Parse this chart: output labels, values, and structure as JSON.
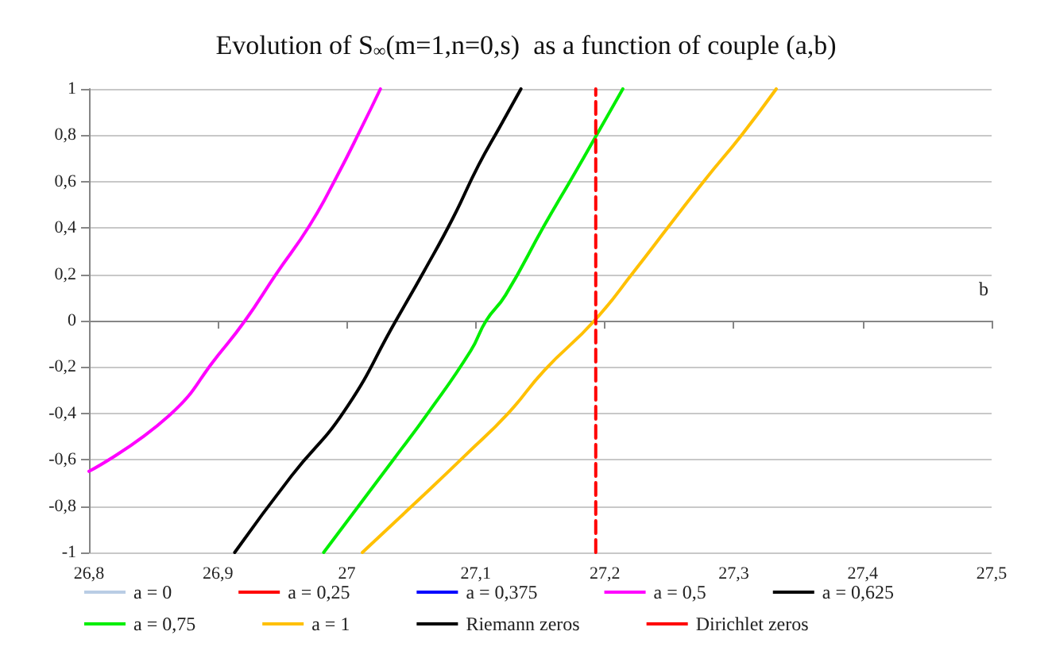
{
  "chart_data": {
    "type": "line",
    "title": "Evolution of S$_{∞}$(m=1,n=0,s)  as a function of couple (a,b)",
    "xlabel": "b",
    "xlim": [
      26.8,
      27.5
    ],
    "xticks": [
      {
        "value": 26.8,
        "label": "26,8"
      },
      {
        "value": 26.9,
        "label": "26,9"
      },
      27,
      {
        "value": 27.1,
        "label": "27,1"
      },
      {
        "value": 27.2,
        "label": "27,2"
      },
      {
        "value": 27.3,
        "label": "27,3"
      },
      {
        "value": 27.4,
        "label": "27,4"
      },
      {
        "value": 27.5,
        "label": "27,5"
      }
    ],
    "ylim": [
      -1,
      1
    ],
    "yticks": [
      -1,
      {
        "value": -0.8,
        "label": "-0,8"
      },
      {
        "value": -0.6,
        "label": "-0,6"
      },
      {
        "value": -0.4,
        "label": "-0,4"
      },
      {
        "value": -0.2,
        "label": "-0,2"
      },
      0,
      {
        "value": 0.2,
        "label": "0,2"
      },
      {
        "value": 0.4,
        "label": "0,4"
      },
      {
        "value": 0.6,
        "label": "0,6"
      },
      {
        "value": 0.8,
        "label": "0,8"
      },
      1
    ],
    "grid": "y",
    "legend": "bottom",
    "marker": "none",
    "series": [
      {
        "name": "a = 0",
        "color": "#b9cde5"
      },
      {
        "name": "a = 0,25",
        "color": "#ff0000"
      },
      {
        "name": "a = 0,375",
        "color": "#0000ff"
      },
      {
        "name": "a = 0,5",
        "color": "#ff00ff",
        "x": [
          26.8,
          26.862,
          26.9,
          26.921,
          26.945,
          26.971,
          26.992,
          27.012,
          27.026
        ],
        "values": [
          -0.65,
          -0.41,
          -0.15,
          0,
          0.2,
          0.41,
          0.62,
          0.84,
          1
        ]
      },
      {
        "name": "a = 0,625",
        "color": "#000000",
        "x": [
          26.913,
          26.957,
          26.998,
          27.038,
          27.06,
          27.082,
          27.102,
          27.119,
          27.135
        ],
        "values": [
          -1,
          -0.67,
          -0.39,
          0,
          0.215,
          0.44,
          0.67,
          0.84,
          1
        ]
      },
      {
        "name": "a = 0,75",
        "color": "#00ee00",
        "x": [
          26.982,
          27.036,
          27.064,
          27.096,
          27.108,
          27.123,
          27.153,
          27.175,
          27.192,
          27.214
        ],
        "values": [
          -1,
          -0.6,
          -0.39,
          -0.13,
          0,
          0.11,
          0.41,
          0.62,
          0.785,
          1
        ]
      },
      {
        "name": "a = 1",
        "color": "#ffc000",
        "x": [
          27.012,
          27.06,
          27.092,
          27.125,
          27.153,
          27.192,
          27.223,
          27.25,
          27.278,
          27.306,
          27.333
        ],
        "values": [
          -1,
          -0.75,
          -0.58,
          -0.4,
          -0.215,
          0,
          0.215,
          0.41,
          0.61,
          0.8,
          1
        ]
      },
      {
        "name": "Riemann zeros",
        "color": "#000000",
        "line_style": "dashed"
      },
      {
        "name": "Dirichlet zeros",
        "color": "#ff0000",
        "line_style": "dashed",
        "x": [
          27.193,
          27.193
        ],
        "values": [
          -1,
          1
        ]
      }
    ]
  }
}
